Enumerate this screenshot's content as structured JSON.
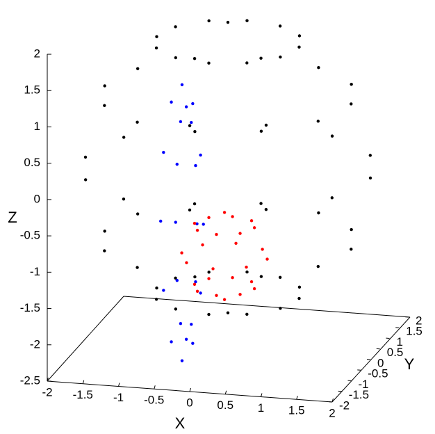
{
  "chart_data": {
    "type": "scatter3d",
    "xlabel": "X",
    "ylabel": "Y",
    "zlabel": "Z",
    "xlim": [
      -2,
      2
    ],
    "ylim": [
      -2,
      2
    ],
    "zlim": [
      -2.5,
      2
    ],
    "xticks": [
      -2,
      -1.5,
      -1,
      -0.5,
      0,
      0.5,
      1,
      1.5,
      2
    ],
    "yticks": [
      -2,
      -1.5,
      -1,
      -0.5,
      0,
      0.5,
      1,
      1.5,
      2
    ],
    "zticks": [
      -2.5,
      -2,
      -1.5,
      -1,
      -0.5,
      0,
      0.5,
      1,
      1.5,
      2
    ],
    "series": [
      {
        "color": "#000000",
        "x": [
          2,
          1.73,
          1,
          0,
          -1,
          -1.73,
          -2,
          -1.73,
          -1,
          0,
          1,
          1.73,
          1.73,
          1.5,
          0.87,
          0,
          -0.87,
          -1.5,
          -1.73,
          -1.5,
          -0.87,
          0,
          0.87,
          1.5,
          1.73,
          1.5,
          0.87,
          0,
          -0.87,
          -1.5,
          -1.73,
          -1.5,
          -0.87,
          0,
          0.87,
          1.5,
          1,
          0.87,
          0.5,
          0,
          -0.5,
          -0.87,
          -1,
          -0.87,
          -0.5,
          0,
          0.5,
          0.87,
          1,
          0.87,
          0.5,
          0,
          -0.5,
          -0.87,
          -1,
          -0.87,
          -0.5,
          0,
          0.5,
          0.87,
          0,
          0
        ],
        "y": [
          0,
          1,
          1.73,
          2,
          1.73,
          1,
          0,
          -1,
          -1.73,
          -2,
          -1.73,
          -1,
          0,
          0.87,
          1.5,
          1.73,
          1.5,
          0.87,
          0,
          -0.87,
          -1.5,
          -1.73,
          -1.5,
          -0.87,
          0,
          0.87,
          1.5,
          1.73,
          1.5,
          0.87,
          0,
          -0.87,
          -1.5,
          -1.73,
          -1.5,
          -0.87,
          0,
          0.5,
          0.87,
          1,
          0.87,
          0.5,
          0,
          -0.5,
          -0.87,
          -1,
          -0.87,
          -0.5,
          0,
          0.5,
          0.87,
          1,
          0.87,
          0.5,
          0,
          -0.5,
          -0.87,
          -1,
          -0.87,
          -0.5,
          0,
          0
        ],
        "z": [
          0,
          0,
          0,
          0,
          0,
          0,
          0,
          0,
          0,
          0,
          0,
          0,
          1,
          1,
          1,
          1,
          1,
          1,
          1,
          1,
          1,
          1,
          1,
          1,
          -1,
          -1,
          -1,
          -1,
          -1,
          -1,
          -1,
          -1,
          -1,
          -1,
          -1,
          -1,
          1.73,
          1.73,
          1.73,
          1.73,
          1.73,
          1.73,
          1.73,
          1.73,
          1.73,
          1.73,
          1.73,
          1.73,
          -1.73,
          -1.73,
          -1.73,
          -1.73,
          -1.73,
          -1.73,
          -1.73,
          -1.73,
          -1.73,
          -1.73,
          -1.73,
          -1.73,
          2,
          -2
        ]
      },
      {
        "color": "#0000ff",
        "x": [
          -0.21,
          -0.25,
          -0.36,
          -0.51,
          -0.66,
          -0.77,
          -0.81,
          -0.77,
          -0.66,
          -0.51,
          -0.36,
          -0.25,
          -0.3,
          -0.32,
          -0.38,
          -0.45,
          -0.53,
          -0.58,
          -0.6,
          -0.58,
          -0.53,
          -0.45,
          -0.38,
          -0.32
        ],
        "y": [
          -0.5,
          -0.5,
          -0.5,
          -0.5,
          -0.5,
          -0.5,
          -0.5,
          -0.5,
          -0.5,
          -0.5,
          -0.5,
          -0.5,
          -0.5,
          -0.5,
          -0.5,
          -0.5,
          -0.5,
          -0.5,
          -0.5,
          -0.5,
          -0.5,
          -0.5,
          -0.5,
          -0.5
        ],
        "z": [
          -0.65,
          0.3,
          1,
          1.25,
          1,
          0.3,
          -0.65,
          -1.6,
          -2.3,
          -2.55,
          -2.3,
          -1.6,
          -0.65,
          0.15,
          0.74,
          0.95,
          0.74,
          0.15,
          -0.65,
          -1.45,
          -2.04,
          -2.25,
          -2.04,
          -1.45
        ]
      },
      {
        "color": "#ff0000",
        "x": [
          0.82,
          0.64,
          0.22,
          -0.2,
          -0.38,
          -0.2,
          0.22,
          0.64,
          0.64,
          0.52,
          0.22,
          -0.08,
          -0.2,
          -0.08,
          0.22,
          0.52,
          0.64,
          0.52,
          0.22,
          -0.08,
          -0.2,
          -0.08,
          0.22,
          0.52,
          0.22,
          0.22
        ],
        "y": [
          -1,
          -0.58,
          -0.4,
          -0.58,
          -1,
          -1.42,
          -1.6,
          -1.42,
          -1,
          -0.7,
          -0.58,
          -0.7,
          -1,
          -1.3,
          -1.42,
          -1.3,
          -1,
          -0.7,
          -0.58,
          -0.7,
          -1,
          -1.3,
          -1.42,
          -1.3,
          -1,
          -1
        ],
        "z": [
          -0.91,
          -0.91,
          -0.91,
          -0.91,
          -0.91,
          -0.91,
          -0.91,
          -0.91,
          -0.49,
          -0.49,
          -0.49,
          -0.49,
          -0.49,
          -0.49,
          -0.49,
          -0.49,
          -1.33,
          -1.33,
          -1.33,
          -1.33,
          -1.33,
          -1.33,
          -1.33,
          -1.33,
          -0.31,
          -1.51
        ]
      }
    ]
  }
}
